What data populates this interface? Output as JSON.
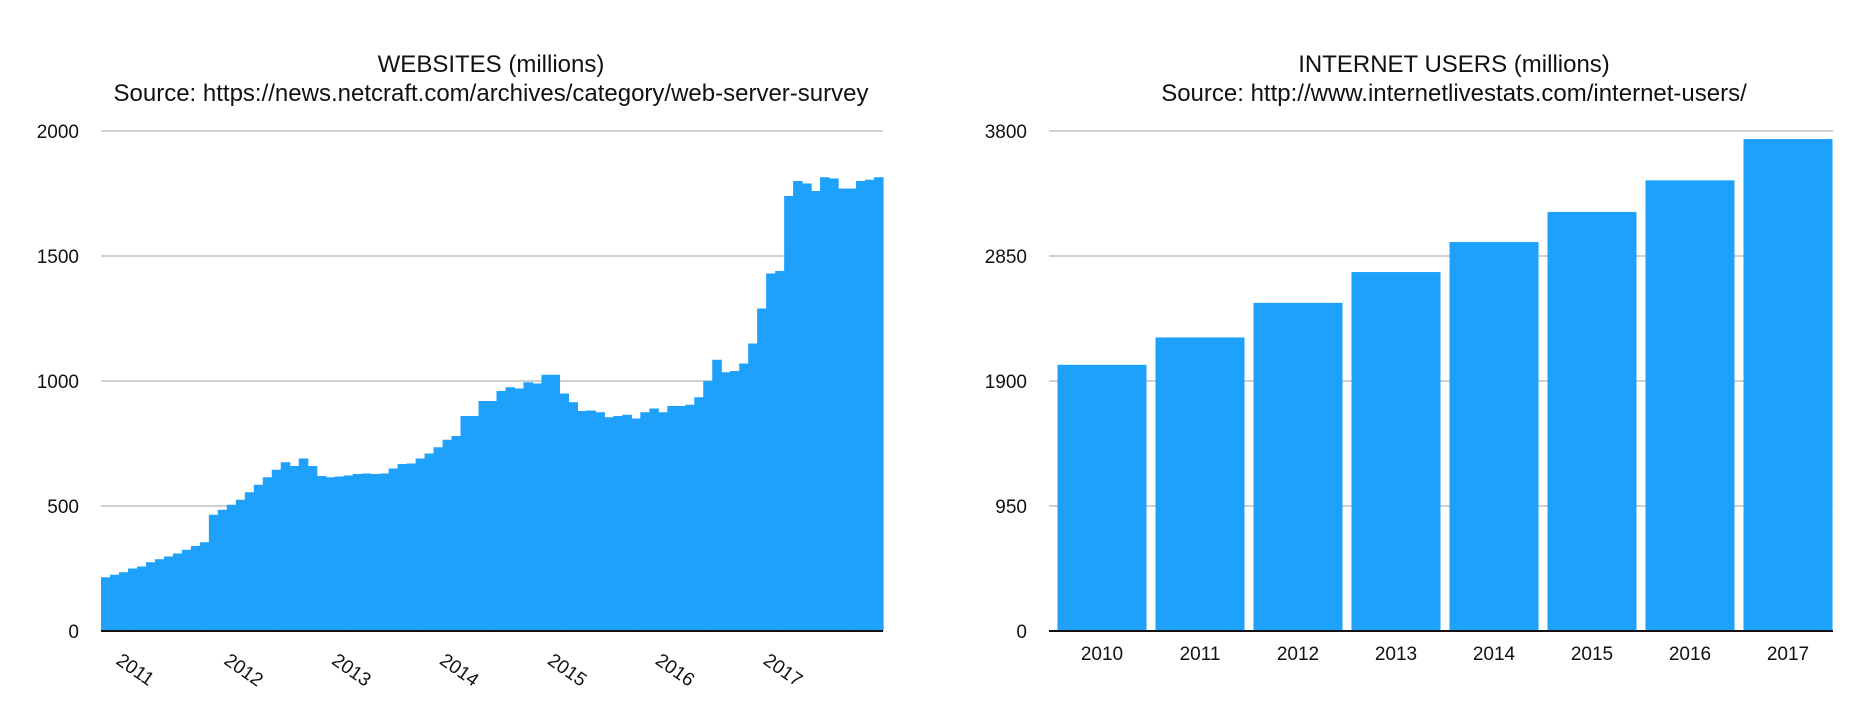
{
  "colors": {
    "bar": "#1da1fb",
    "grid": "#b4b4b4",
    "axis": "#111111",
    "text": "#111111"
  },
  "chart_data": [
    {
      "type": "area",
      "title": "WEBSITES (millions)",
      "subtitle": "Source: https://news.netcraft.com/archives/category/web-server-survey",
      "ylim": [
        0,
        2000
      ],
      "yticks": [
        "0",
        "500",
        "1000",
        "1500",
        "2000"
      ],
      "xticks": [
        "2011",
        "2012",
        "2013",
        "2014",
        "2015",
        "2016",
        "2017"
      ],
      "grid": true,
      "start": "2010-09",
      "values": [
        215,
        225,
        235,
        250,
        258,
        275,
        287,
        298,
        310,
        325,
        340,
        355,
        465,
        485,
        505,
        525,
        555,
        585,
        615,
        645,
        675,
        660,
        690,
        660,
        620,
        615,
        618,
        622,
        628,
        630,
        628,
        630,
        650,
        668,
        670,
        690,
        710,
        735,
        765,
        780,
        860,
        860,
        920,
        920,
        960,
        975,
        970,
        995,
        990,
        1025,
        1025,
        950,
        915,
        880,
        882,
        875,
        855,
        860,
        865,
        850,
        875,
        890,
        875,
        900,
        900,
        905,
        935,
        1000,
        1085,
        1035,
        1040,
        1070,
        1150,
        1290,
        1430,
        1440,
        1740,
        1800,
        1790,
        1760,
        1815,
        1810,
        1770,
        1770,
        1800,
        1805,
        1815
      ]
    },
    {
      "type": "bar",
      "title": "INTERNET USERS (millions)",
      "subtitle": "Source: http://www.internetlivestats.com/internet-users/",
      "ylim": [
        0,
        3800
      ],
      "yticks": [
        "0",
        "950",
        "1900",
        "2850",
        "3800"
      ],
      "grid": true,
      "categories": [
        "2010",
        "2011",
        "2012",
        "2013",
        "2014",
        "2015",
        "2016",
        "2017"
      ],
      "values": [
        2023,
        2231,
        2494,
        2728,
        2956,
        3185,
        3425,
        3739
      ]
    }
  ]
}
